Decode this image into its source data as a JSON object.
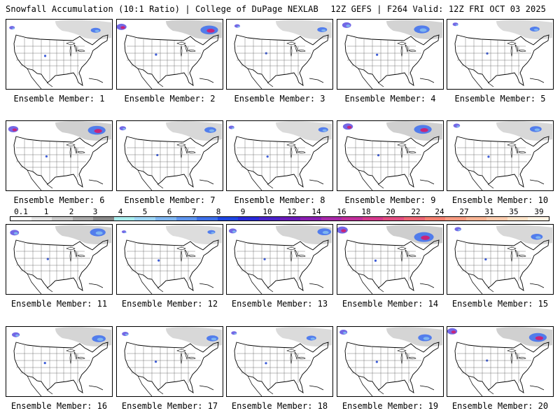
{
  "header": {
    "left": "Snowfall Accumulation (10:1 Ratio) | College of DuPage NEXLAB",
    "right": "12Z GEFS | F264 Valid: 12Z FRI OCT 03 2025"
  },
  "label_prefix": "Ensemble Member: ",
  "members": [
    {
      "id": "1",
      "label": "Ensemble Member: 1",
      "intensity": 0.5
    },
    {
      "id": "2",
      "label": "Ensemble Member: 2",
      "intensity": 0.9
    },
    {
      "id": "3",
      "label": "Ensemble Member: 3",
      "intensity": 0.5
    },
    {
      "id": "4",
      "label": "Ensemble Member: 4",
      "intensity": 0.8
    },
    {
      "id": "5",
      "label": "Ensemble Member: 5",
      "intensity": 0.5
    },
    {
      "id": "6",
      "label": "Ensemble Member: 6",
      "intensity": 0.9
    },
    {
      "id": "7",
      "label": "Ensemble Member: 7",
      "intensity": 0.6
    },
    {
      "id": "8",
      "label": "Ensemble Member: 8",
      "intensity": 0.5
    },
    {
      "id": "9",
      "label": "Ensemble Member: 9",
      "intensity": 0.9
    },
    {
      "id": "10",
      "label": "Ensemble Member: 10",
      "intensity": 0.6
    },
    {
      "id": "11",
      "label": "Ensemble Member: 11",
      "intensity": 0.8
    },
    {
      "id": "12",
      "label": "Ensemble Member: 12",
      "intensity": 0.4
    },
    {
      "id": "13",
      "label": "Ensemble Member: 13",
      "intensity": 0.7
    },
    {
      "id": "14",
      "label": "Ensemble Member: 14",
      "intensity": 1.0
    },
    {
      "id": "15",
      "label": "Ensemble Member: 15",
      "intensity": 0.6
    },
    {
      "id": "16",
      "label": "Ensemble Member: 16",
      "intensity": 0.7
    },
    {
      "id": "17",
      "label": "Ensemble Member: 17",
      "intensity": 0.6
    },
    {
      "id": "18",
      "label": "Ensemble Member: 18",
      "intensity": 0.5
    },
    {
      "id": "19",
      "label": "Ensemble Member: 19",
      "intensity": 0.7
    },
    {
      "id": "20",
      "label": "Ensemble Member: 20",
      "intensity": 0.9
    }
  ],
  "colorbar": {
    "ticks": [
      "0.1",
      "1",
      "2",
      "3",
      "4",
      "5",
      "6",
      "7",
      "8",
      "9",
      "10",
      "12",
      "14",
      "16",
      "18",
      "20",
      "22",
      "24",
      "27",
      "31",
      "35",
      "39"
    ],
    "colors": [
      "#ffffff",
      "#e4e4e4",
      "#c8c8c8",
      "#a8a8a8",
      "#888888",
      "#a8ecec",
      "#9ed6f5",
      "#7fb6f0",
      "#5e94ec",
      "#3d6fe8",
      "#1e46e0",
      "#2a2ad8",
      "#4a22c8",
      "#6a1ab8",
      "#8a1eb0",
      "#a82aa8",
      "#c02f9a",
      "#d43a8c",
      "#e04d80",
      "#ea6574",
      "#f28070",
      "#f69a80",
      "#f8b494",
      "#fbcbad",
      "#fde2c8",
      "#fff2e2"
    ]
  }
}
